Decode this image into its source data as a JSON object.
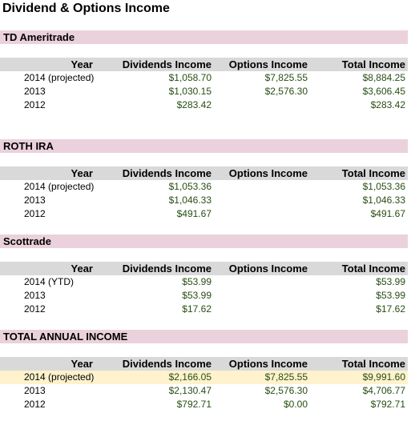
{
  "title": "Dividend & Options Income",
  "headers": {
    "year": "Year",
    "dividends": "Dividends Income",
    "options": "Options Income",
    "total": "Total Income"
  },
  "sections": [
    {
      "name": "TD Ameritrade",
      "rows": [
        {
          "year": "2014  (projected)",
          "dividends": "$1,058.70",
          "options": "$7,825.55",
          "total": "$8,884.25"
        },
        {
          "year": "2013",
          "dividends": "$1,030.15",
          "options": "$2,576.30",
          "total": "$3,606.45"
        },
        {
          "year": "2012",
          "dividends": "$283.42",
          "options": "",
          "total": "$283.42"
        }
      ]
    },
    {
      "name": "ROTH IRA",
      "rows": [
        {
          "year": "2014  (projected)",
          "dividends": "$1,053.36",
          "options": "",
          "total": "$1,053.36"
        },
        {
          "year": "2013",
          "dividends": "$1,046.33",
          "options": "",
          "total": "$1,046.33"
        },
        {
          "year": "2012",
          "dividends": "$491.67",
          "options": "",
          "total": "$491.67"
        }
      ]
    },
    {
      "name": "Scottrade",
      "rows": [
        {
          "year": "2014  (YTD)",
          "dividends": "$53.99",
          "options": "",
          "total": "$53.99"
        },
        {
          "year": "2013",
          "dividends": "$53.99",
          "options": "",
          "total": "$53.99"
        },
        {
          "year": "2012",
          "dividends": "$17.62",
          "options": "",
          "total": "$17.62"
        }
      ]
    },
    {
      "name": "TOTAL ANNUAL INCOME",
      "rows": [
        {
          "year": "2014  (projected)",
          "dividends": "$2,166.05",
          "options": "$7,825.55",
          "total": "$9,991.60"
        },
        {
          "year": "2013",
          "dividends": "$2,130.47",
          "options": "$2,576.30",
          "total": "$4,706.77"
        },
        {
          "year": "2012",
          "dividends": "$792.71",
          "options": "$0.00",
          "total": "$792.71"
        }
      ]
    }
  ],
  "colors": {
    "section_bar": "#ead1dc",
    "header_bar": "#d9d9d9",
    "money_text": "#274e13",
    "highlight_row": "#fff2cc"
  }
}
